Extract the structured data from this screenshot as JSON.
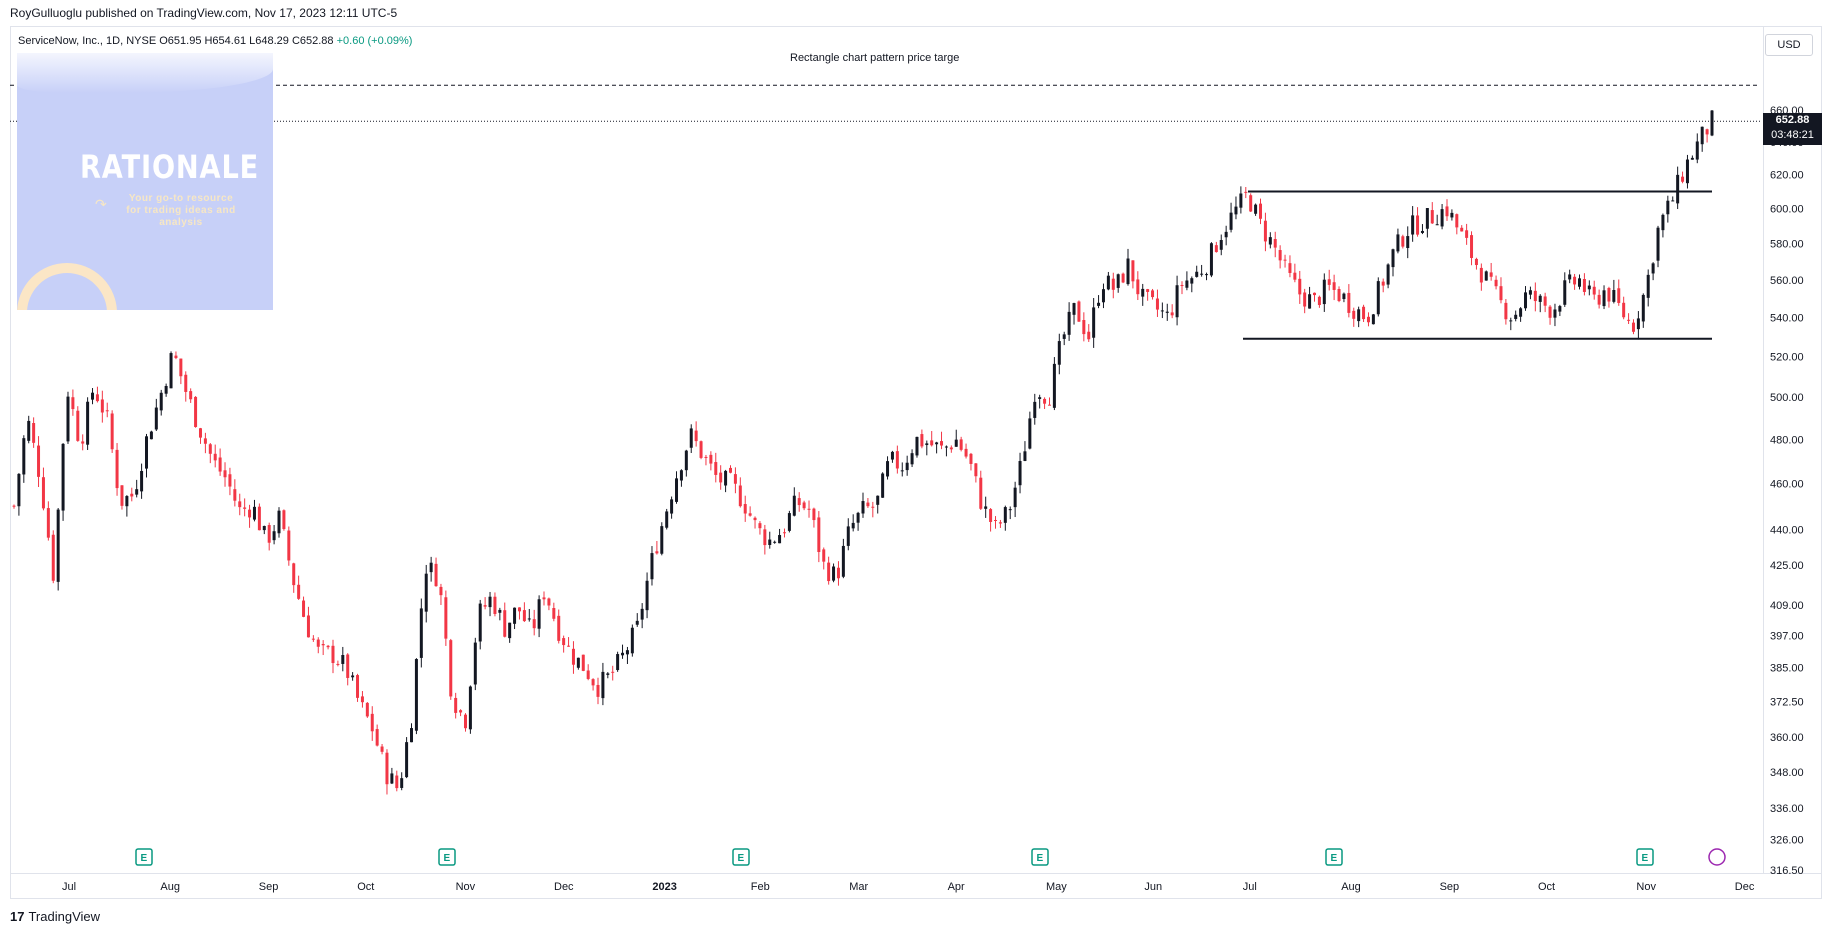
{
  "header": {
    "publisher_line": "RoyGulluoglu published on TradingView.com, Nov 17, 2023 12:11 UTC-5"
  },
  "symbol": {
    "name_line": "ServiceNow, Inc., 1D, NYSE",
    "ohlc_line": "O651.95 H654.61 L648.29 C652.88",
    "change": "+0.60 (+0.09%)"
  },
  "currency": "USD",
  "annotation": "Rectangle chart pattern price targe",
  "price_tag": {
    "price": "652.88",
    "countdown": "03:48:21"
  },
  "logo": {
    "title": "RATIONALE",
    "tagline": "Your go-to resource for trading ideas and analysis"
  },
  "footer": {
    "brand": "TradingView",
    "brand_mark": "17"
  },
  "colors": {
    "up": "#131722",
    "down": "#f23645",
    "line": "#131722",
    "grid": "#e0e3eb"
  },
  "chart_data": {
    "type": "candlestick",
    "title": "ServiceNow, Inc., 1D, NYSE",
    "scale": "log",
    "y_ticks": [
      "660.00",
      "640.00",
      "620.00",
      "600.00",
      "580.00",
      "560.00",
      "540.00",
      "520.00",
      "500.00",
      "480.00",
      "460.00",
      "440.00",
      "425.00",
      "409.00",
      "397.00",
      "385.00",
      "372.50",
      "360.00",
      "348.00",
      "336.00",
      "326.00",
      "316.50"
    ],
    "x_ticks": [
      "Jul",
      "Aug",
      "Sep",
      "Oct",
      "Nov",
      "Dec",
      "2023",
      "Feb",
      "Mar",
      "Apr",
      "May",
      "Jun",
      "Jul",
      "Aug",
      "Sep",
      "Oct",
      "Nov",
      "Dec"
    ],
    "earnings_marker": "E",
    "earnings_count": 6,
    "levels": {
      "resistance": 610,
      "support": 529,
      "target": 676,
      "last_close": 652.88
    },
    "price_path": [
      [
        0,
        450
      ],
      [
        8,
        490
      ],
      [
        16,
        462
      ],
      [
        24,
        420
      ],
      [
        32,
        505
      ],
      [
        40,
        478
      ],
      [
        48,
        505
      ],
      [
        56,
        490
      ],
      [
        64,
        452
      ],
      [
        72,
        455
      ],
      [
        80,
        480
      ],
      [
        88,
        500
      ],
      [
        96,
        522
      ],
      [
        104,
        502
      ],
      [
        112,
        485
      ],
      [
        120,
        470
      ],
      [
        128,
        462
      ],
      [
        136,
        448
      ],
      [
        144,
        450
      ],
      [
        152,
        435
      ],
      [
        160,
        445
      ],
      [
        168,
        420
      ],
      [
        176,
        402
      ],
      [
        184,
        390
      ],
      [
        192,
        390
      ],
      [
        200,
        385
      ],
      [
        208,
        372
      ],
      [
        216,
        363
      ],
      [
        224,
        348
      ],
      [
        232,
        342
      ],
      [
        240,
        368
      ],
      [
        248,
        425
      ],
      [
        256,
        420
      ],
      [
        264,
        375
      ],
      [
        272,
        365
      ],
      [
        280,
        405
      ],
      [
        288,
        412
      ],
      [
        296,
        400
      ],
      [
        304,
        408
      ],
      [
        312,
        398
      ],
      [
        320,
        415
      ],
      [
        328,
        400
      ],
      [
        336,
        390
      ],
      [
        344,
        385
      ],
      [
        352,
        378
      ],
      [
        360,
        382
      ],
      [
        368,
        390
      ],
      [
        376,
        400
      ],
      [
        384,
        425
      ],
      [
        392,
        445
      ],
      [
        400,
        465
      ],
      [
        408,
        482
      ],
      [
        416,
        472
      ],
      [
        424,
        462
      ],
      [
        432,
        460
      ],
      [
        440,
        452
      ],
      [
        448,
        440
      ],
      [
        456,
        435
      ],
      [
        464,
        440
      ],
      [
        472,
        452
      ],
      [
        480,
        448
      ],
      [
        488,
        425
      ],
      [
        496,
        420
      ],
      [
        504,
        440
      ],
      [
        512,
        448
      ],
      [
        520,
        450
      ],
      [
        528,
        470
      ],
      [
        536,
        468
      ],
      [
        544,
        480
      ],
      [
        552,
        478
      ],
      [
        560,
        475
      ],
      [
        568,
        480
      ],
      [
        576,
        470
      ],
      [
        584,
        450
      ],
      [
        592,
        440
      ],
      [
        600,
        448
      ],
      [
        608,
        470
      ],
      [
        616,
        505
      ],
      [
        624,
        500
      ],
      [
        632,
        528
      ],
      [
        640,
        545
      ],
      [
        648,
        530
      ],
      [
        656,
        560
      ],
      [
        664,
        555
      ],
      [
        672,
        568
      ],
      [
        680,
        550
      ],
      [
        688,
        545
      ],
      [
        696,
        540
      ],
      [
        704,
        558
      ],
      [
        712,
        562
      ],
      [
        720,
        570
      ],
      [
        728,
        586
      ],
      [
        736,
        598
      ],
      [
        744,
        608
      ],
      [
        752,
        590
      ],
      [
        760,
        578
      ],
      [
        768,
        562
      ],
      [
        776,
        552
      ],
      [
        784,
        548
      ],
      [
        792,
        556
      ],
      [
        800,
        552
      ],
      [
        808,
        545
      ],
      [
        816,
        540
      ],
      [
        824,
        556
      ],
      [
        832,
        575
      ],
      [
        840,
        588
      ],
      [
        848,
        592
      ],
      [
        856,
        596
      ],
      [
        864,
        600
      ],
      [
        872,
        586
      ],
      [
        880,
        572
      ],
      [
        888,
        560
      ],
      [
        896,
        548
      ],
      [
        904,
        540
      ],
      [
        912,
        552
      ],
      [
        920,
        548
      ],
      [
        928,
        544
      ],
      [
        936,
        556
      ],
      [
        944,
        560
      ],
      [
        952,
        548
      ],
      [
        960,
        555
      ],
      [
        968,
        545
      ],
      [
        976,
        535
      ],
      [
        984,
        555
      ],
      [
        992,
        590
      ],
      [
        1000,
        605
      ],
      [
        1008,
        625
      ],
      [
        1016,
        640
      ],
      [
        1024,
        652.88
      ]
    ]
  }
}
